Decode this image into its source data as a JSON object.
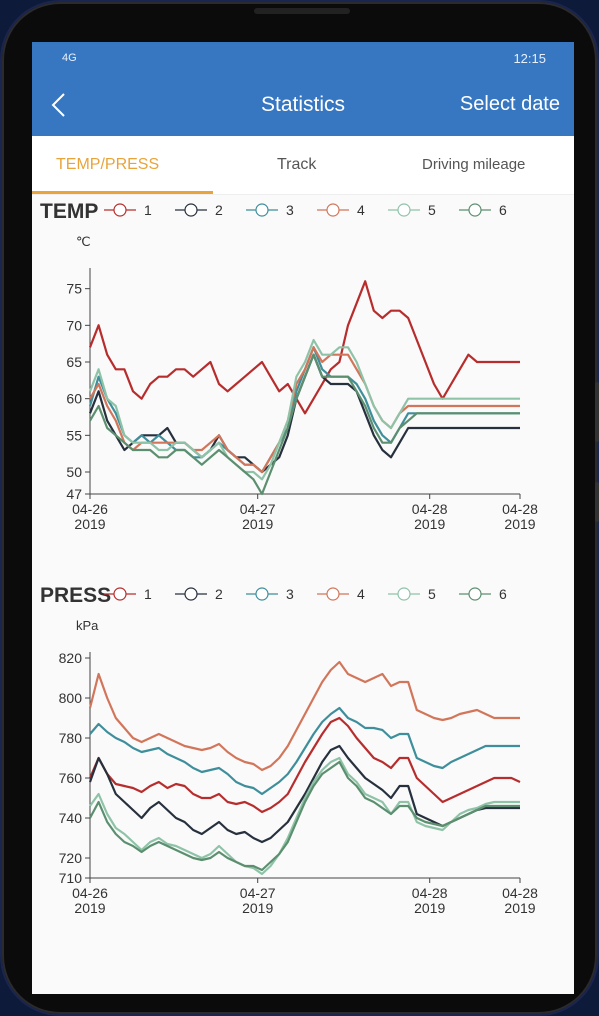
{
  "status": {
    "signal": "4G",
    "time": "12:15"
  },
  "header": {
    "title": "Statistics",
    "action": "Select date"
  },
  "tabs": [
    {
      "label": "TEMP/PRESS",
      "active": true
    },
    {
      "label": "Track",
      "active": false
    },
    {
      "label": "Driving mileage",
      "active": false
    }
  ],
  "colors": {
    "accent": "#3777c2",
    "tab_active": "#e8a43b",
    "series": [
      "#b72d2d",
      "#27303d",
      "#3f8e9b",
      "#d2765b",
      "#8fc3a8",
      "#5c8f6f"
    ]
  },
  "chart_data": [
    {
      "type": "line",
      "title": "TEMP",
      "ylabel": "℃",
      "ylim": [
        47,
        77
      ],
      "yticks": [
        47,
        50,
        55,
        60,
        65,
        70,
        75
      ],
      "xlim": [
        0,
        100
      ],
      "xticks": [
        {
          "x": 0,
          "label": "04-26",
          "sub": "2019"
        },
        {
          "x": 39,
          "label": "04-27",
          "sub": "2019"
        },
        {
          "x": 79,
          "label": "04-28",
          "sub": "2019"
        },
        {
          "x": 100,
          "label": "04-28",
          "sub": "2019"
        }
      ],
      "x": [
        0,
        2,
        4,
        6,
        8,
        10,
        12,
        14,
        16,
        18,
        20,
        22,
        24,
        26,
        28,
        30,
        32,
        34,
        36,
        38,
        40,
        42,
        44,
        46,
        48,
        50,
        52,
        54,
        56,
        58,
        60,
        62,
        64,
        66,
        68,
        70,
        72,
        74,
        76,
        78,
        80,
        82,
        84,
        86,
        88,
        90,
        92,
        94,
        96,
        98,
        100
      ],
      "series": [
        {
          "name": "1",
          "values": [
            67,
            70,
            66,
            64,
            64,
            61,
            60,
            62,
            63,
            63,
            64,
            64,
            63,
            64,
            65,
            62,
            61,
            62,
            63,
            64,
            65,
            63,
            61,
            62,
            60,
            58,
            60,
            62,
            64,
            65,
            70,
            73,
            76,
            72,
            71,
            72,
            72,
            71,
            68,
            65,
            62,
            60,
            62,
            64,
            66,
            65,
            65,
            65,
            65,
            65,
            65
          ]
        },
        {
          "name": "2",
          "values": [
            58,
            61,
            57,
            55,
            53,
            54,
            55,
            55,
            55,
            56,
            54,
            54,
            53,
            52,
            53,
            55,
            53,
            52,
            52,
            51,
            50,
            51,
            52,
            55,
            60,
            63,
            66,
            63,
            62,
            62,
            62,
            61,
            58,
            55,
            53,
            52,
            54,
            56,
            56,
            56,
            56,
            56,
            56,
            56,
            56,
            56,
            56,
            56,
            56,
            56,
            56
          ]
        },
        {
          "name": "3",
          "values": [
            59,
            63,
            60,
            58,
            55,
            54,
            55,
            54,
            55,
            54,
            53,
            53,
            52,
            52,
            53,
            54,
            53,
            52,
            51,
            51,
            50,
            52,
            54,
            56,
            61,
            64,
            67,
            64,
            63,
            63,
            63,
            62,
            60,
            57,
            55,
            54,
            56,
            58,
            58,
            58,
            58,
            58,
            58,
            58,
            58,
            58,
            58,
            58,
            58,
            58,
            58
          ]
        },
        {
          "name": "4",
          "values": [
            60,
            62,
            59,
            57,
            54,
            53,
            54,
            54,
            54,
            54,
            54,
            54,
            53,
            53,
            54,
            55,
            53,
            52,
            51,
            51,
            50,
            52,
            54,
            57,
            62,
            64,
            67,
            65,
            66,
            66,
            66,
            64,
            62,
            59,
            57,
            56,
            58,
            59,
            59,
            59,
            59,
            59,
            59,
            59,
            59,
            59,
            59,
            59,
            59,
            59,
            59
          ]
        },
        {
          "name": "5",
          "values": [
            61,
            64,
            60,
            59,
            55,
            54,
            54,
            54,
            53,
            53,
            54,
            54,
            53,
            52,
            53,
            54,
            52,
            51,
            50,
            50,
            49,
            51,
            54,
            57,
            63,
            65,
            68,
            66,
            66,
            67,
            67,
            65,
            62,
            59,
            57,
            56,
            58,
            60,
            60,
            60,
            60,
            60,
            60,
            60,
            60,
            60,
            60,
            60,
            60,
            60,
            60
          ]
        },
        {
          "name": "6",
          "values": [
            57,
            59,
            56,
            55,
            54,
            53,
            53,
            53,
            52,
            52,
            53,
            53,
            52,
            51,
            52,
            53,
            52,
            51,
            50,
            49,
            47,
            50,
            53,
            56,
            60,
            63,
            66,
            63,
            63,
            63,
            63,
            61,
            59,
            56,
            54,
            54,
            56,
            57,
            58,
            58,
            58,
            58,
            58,
            58,
            58,
            58,
            58,
            58,
            58,
            58,
            58
          ]
        }
      ]
    },
    {
      "type": "line",
      "title": "PRESS",
      "ylabel": "kPa",
      "ylim": [
        710,
        820
      ],
      "yticks": [
        710,
        720,
        740,
        760,
        780,
        800,
        820
      ],
      "xlim": [
        0,
        100
      ],
      "xticks": [
        {
          "x": 0,
          "label": "04-26",
          "sub": "2019"
        },
        {
          "x": 39,
          "label": "04-27",
          "sub": "2019"
        },
        {
          "x": 79,
          "label": "04-28",
          "sub": "2019"
        },
        {
          "x": 100,
          "label": "04-28",
          "sub": "2019"
        }
      ],
      "x": [
        0,
        2,
        4,
        6,
        8,
        10,
        12,
        14,
        16,
        18,
        20,
        22,
        24,
        26,
        28,
        30,
        32,
        34,
        36,
        38,
        40,
        42,
        44,
        46,
        48,
        50,
        52,
        54,
        56,
        58,
        60,
        62,
        64,
        66,
        68,
        70,
        72,
        74,
        76,
        78,
        80,
        82,
        84,
        86,
        88,
        90,
        92,
        94,
        96,
        98,
        100
      ],
      "series": [
        {
          "name": "1",
          "values": [
            760,
            770,
            762,
            757,
            756,
            755,
            753,
            756,
            758,
            755,
            757,
            756,
            752,
            750,
            750,
            752,
            748,
            747,
            748,
            746,
            743,
            745,
            748,
            752,
            760,
            768,
            775,
            782,
            788,
            790,
            786,
            780,
            775,
            770,
            768,
            765,
            770,
            770,
            760,
            756,
            752,
            748,
            750,
            752,
            754,
            756,
            758,
            760,
            760,
            760,
            758
          ]
        },
        {
          "name": "2",
          "values": [
            758,
            770,
            762,
            752,
            748,
            744,
            740,
            745,
            748,
            744,
            740,
            738,
            734,
            732,
            735,
            738,
            734,
            732,
            733,
            730,
            728,
            730,
            734,
            738,
            745,
            752,
            760,
            768,
            774,
            776,
            770,
            765,
            760,
            757,
            754,
            750,
            756,
            756,
            742,
            740,
            738,
            736,
            738,
            740,
            742,
            744,
            745,
            745,
            745,
            745,
            745
          ]
        },
        {
          "name": "3",
          "values": [
            782,
            787,
            783,
            780,
            778,
            775,
            773,
            774,
            775,
            772,
            770,
            768,
            765,
            763,
            764,
            765,
            762,
            758,
            756,
            755,
            752,
            755,
            758,
            762,
            768,
            775,
            782,
            788,
            792,
            795,
            790,
            788,
            785,
            785,
            784,
            780,
            782,
            782,
            770,
            768,
            766,
            765,
            768,
            770,
            772,
            774,
            776,
            776,
            776,
            776,
            776
          ]
        },
        {
          "name": "4",
          "values": [
            795,
            812,
            800,
            790,
            785,
            780,
            778,
            780,
            782,
            780,
            778,
            776,
            775,
            774,
            775,
            777,
            773,
            770,
            768,
            767,
            764,
            766,
            770,
            776,
            784,
            792,
            800,
            808,
            814,
            818,
            812,
            810,
            808,
            810,
            812,
            806,
            808,
            808,
            794,
            792,
            790,
            789,
            790,
            792,
            793,
            794,
            792,
            790,
            790,
            790,
            790
          ]
        },
        {
          "name": "5",
          "values": [
            746,
            752,
            742,
            735,
            732,
            728,
            724,
            728,
            730,
            727,
            726,
            724,
            722,
            720,
            722,
            726,
            722,
            718,
            716,
            715,
            712,
            716,
            722,
            730,
            740,
            750,
            758,
            764,
            768,
            770,
            762,
            758,
            752,
            750,
            748,
            742,
            748,
            748,
            738,
            736,
            735,
            734,
            738,
            742,
            744,
            745,
            747,
            748,
            748,
            748,
            748
          ]
        },
        {
          "name": "6",
          "values": [
            740,
            748,
            738,
            732,
            728,
            726,
            723,
            726,
            728,
            726,
            724,
            722,
            720,
            719,
            720,
            723,
            720,
            718,
            716,
            716,
            714,
            718,
            722,
            728,
            738,
            748,
            756,
            762,
            765,
            768,
            760,
            756,
            750,
            748,
            745,
            742,
            746,
            746,
            740,
            738,
            737,
            736,
            738,
            740,
            742,
            744,
            746,
            746,
            746,
            746,
            746
          ]
        }
      ]
    }
  ]
}
